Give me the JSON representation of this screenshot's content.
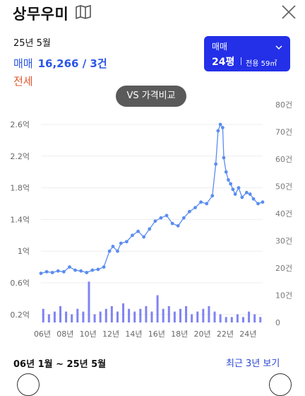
{
  "header": {
    "title": "상무우미",
    "map_icon": "map-icon",
    "close_icon": "close-icon"
  },
  "summary": {
    "date": "25년 5월",
    "trade_label": "매매",
    "trade_value": "16,266 / 3건",
    "lease_label": "전세"
  },
  "selector": {
    "type": "매매",
    "size": "24평",
    "area": "전용 59㎡"
  },
  "compare_button": "VS 가격비교",
  "footer": {
    "range": "06년 1월 ~ 25년 5월",
    "recent": "최근 3년 보기"
  },
  "colors": {
    "trade": "#2b55e6",
    "lease": "#e4572e",
    "selector_bg": "#2330e8",
    "line": "#5b8def",
    "bars": "#6a6ff0"
  },
  "chart_data": {
    "type": "line",
    "x_ticks": [
      "06년",
      "08년",
      "10년",
      "12년",
      "14년",
      "16년",
      "18년",
      "20년",
      "22년",
      "24년"
    ],
    "y_left_ticks": [
      "0.2억",
      "0.6억",
      "1억",
      "1.4억",
      "1.8억",
      "2.2억",
      "2.6억"
    ],
    "y_left_range": [
      0.1,
      2.85
    ],
    "y_right_ticks": [
      "0",
      "10건",
      "20건",
      "30건",
      "40건",
      "50건",
      "60건",
      "70건",
      "80건"
    ],
    "y_right_range": [
      0,
      80
    ],
    "x_range": [
      2006.0,
      2025.4
    ],
    "series": [
      {
        "kind": "line",
        "x": [
          2006.0,
          2006.5,
          2007.0,
          2007.5,
          2008.0,
          2008.5,
          2009.0,
          2009.5,
          2010.0,
          2010.5,
          2011.0,
          2011.5,
          2012.0,
          2012.3,
          2012.7,
          2013.0,
          2013.5,
          2014.0,
          2014.5,
          2015.0,
          2015.5,
          2016.0,
          2016.5,
          2017.0,
          2017.5,
          2018.0,
          2018.5,
          2019.0,
          2019.5,
          2020.0,
          2020.5,
          2021.0,
          2021.3,
          2021.5,
          2021.7,
          2021.9,
          2022.0,
          2022.2,
          2022.4,
          2022.6,
          2022.8,
          2023.0,
          2023.3,
          2023.6,
          2024.0,
          2024.3,
          2024.6,
          2025.0,
          2025.4
        ],
        "y": [
          0.72,
          0.74,
          0.73,
          0.75,
          0.74,
          0.8,
          0.76,
          0.75,
          0.73,
          0.76,
          0.77,
          0.8,
          1.0,
          1.06,
          1.0,
          1.1,
          1.12,
          1.2,
          1.25,
          1.18,
          1.28,
          1.38,
          1.42,
          1.45,
          1.35,
          1.32,
          1.42,
          1.5,
          1.55,
          1.62,
          1.6,
          1.7,
          2.1,
          2.52,
          2.6,
          2.56,
          2.18,
          2.0,
          1.9,
          1.85,
          1.78,
          1.72,
          1.8,
          1.68,
          1.74,
          1.72,
          1.66,
          1.6,
          1.62
        ]
      },
      {
        "kind": "bar",
        "name_axis": "right",
        "x": [
          2006.2,
          2006.7,
          2007.2,
          2007.7,
          2008.2,
          2008.7,
          2009.2,
          2009.7,
          2010.2,
          2010.7,
          2011.2,
          2011.7,
          2012.2,
          2012.7,
          2013.2,
          2013.7,
          2014.2,
          2014.7,
          2015.2,
          2015.7,
          2016.2,
          2016.7,
          2017.2,
          2017.7,
          2018.2,
          2018.7,
          2019.2,
          2019.7,
          2020.2,
          2020.7,
          2021.2,
          2021.7,
          2022.2,
          2022.7,
          2023.2,
          2023.7,
          2024.2,
          2024.7,
          2025.2
        ],
        "values": [
          5,
          3,
          4,
          6,
          4,
          3,
          5,
          4,
          15,
          3,
          4,
          5,
          6,
          4,
          7,
          5,
          4,
          5,
          6,
          4,
          10,
          5,
          6,
          4,
          5,
          6,
          3,
          4,
          5,
          6,
          4,
          3,
          2,
          2,
          3,
          2,
          4,
          3,
          2
        ]
      }
    ]
  }
}
